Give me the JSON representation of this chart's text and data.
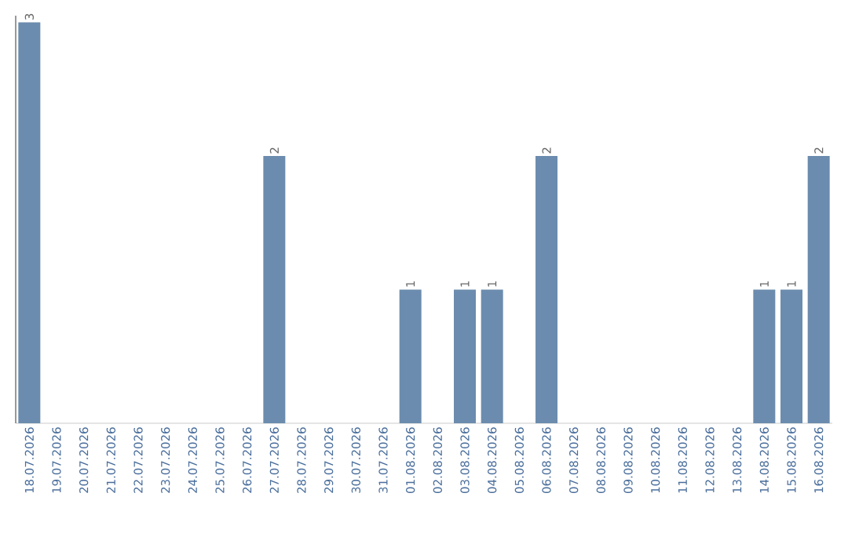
{
  "chart_data": {
    "type": "bar",
    "categories": [
      "18.07.2026",
      "19.07.2026",
      "20.07.2026",
      "21.07.2026",
      "22.07.2026",
      "23.07.2026",
      "24.07.2026",
      "25.07.2026",
      "26.07.2026",
      "27.07.2026",
      "28.07.2026",
      "29.07.2026",
      "30.07.2026",
      "31.07.2026",
      "01.08.2026",
      "02.08.2026",
      "03.08.2026",
      "04.08.2026",
      "05.08.2026",
      "06.08.2026",
      "07.08.2026",
      "08.08.2026",
      "09.08.2026",
      "10.08.2026",
      "11.08.2026",
      "12.08.2026",
      "13.08.2026",
      "14.08.2026",
      "15.08.2026",
      "16.08.2026"
    ],
    "values": [
      3,
      0,
      0,
      0,
      0,
      0,
      0,
      0,
      0,
      2,
      0,
      0,
      0,
      0,
      1,
      0,
      1,
      1,
      0,
      2,
      0,
      0,
      0,
      0,
      0,
      0,
      0,
      1,
      1,
      2
    ],
    "value_labels": [
      "3",
      null,
      null,
      null,
      null,
      null,
      null,
      null,
      null,
      "2",
      null,
      null,
      null,
      null,
      "1",
      null,
      "1",
      "1",
      null,
      "2",
      null,
      null,
      null,
      null,
      null,
      null,
      null,
      "1",
      "1",
      "2"
    ],
    "color": "#6b8cae",
    "ylim": [
      0,
      3.05
    ],
    "tick_labels": "x",
    "grid": false
  }
}
